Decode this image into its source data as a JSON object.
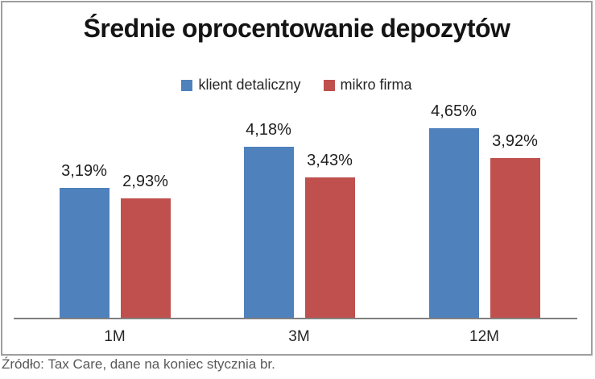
{
  "title": "Średnie oprocentowanie depozytów",
  "source_note": "Źródło: Tax Care, dane na koniec stycznia br.",
  "legend": {
    "items": [
      {
        "label": "klient detaliczny",
        "color": "#4F81BD"
      },
      {
        "label": "mikro firma",
        "color": "#C0504D"
      }
    ]
  },
  "chart_data": {
    "type": "bar",
    "title": "Średnie oprocentowanie depozytów",
    "categories": [
      "1M",
      "3M",
      "12M"
    ],
    "series": [
      {
        "name": "klient detaliczny",
        "color": "#4F81BD",
        "values": [
          3.19,
          4.18,
          4.65
        ],
        "value_labels": [
          "3,19%",
          "4,18%",
          "4,65%"
        ]
      },
      {
        "name": "mikro firma",
        "color": "#C0504D",
        "values": [
          2.93,
          3.43,
          3.92
        ],
        "value_labels": [
          "2,93%",
          "3,43%",
          "3,92%"
        ]
      }
    ],
    "unit": "%",
    "decimal_separator": ",",
    "ylim": [
      0,
      5
    ],
    "grid": false,
    "y_axis_visible": false,
    "legend_position": "top",
    "value_labels_shown": true,
    "source": "Źródło: Tax Care, dane na koniec stycznia br."
  }
}
